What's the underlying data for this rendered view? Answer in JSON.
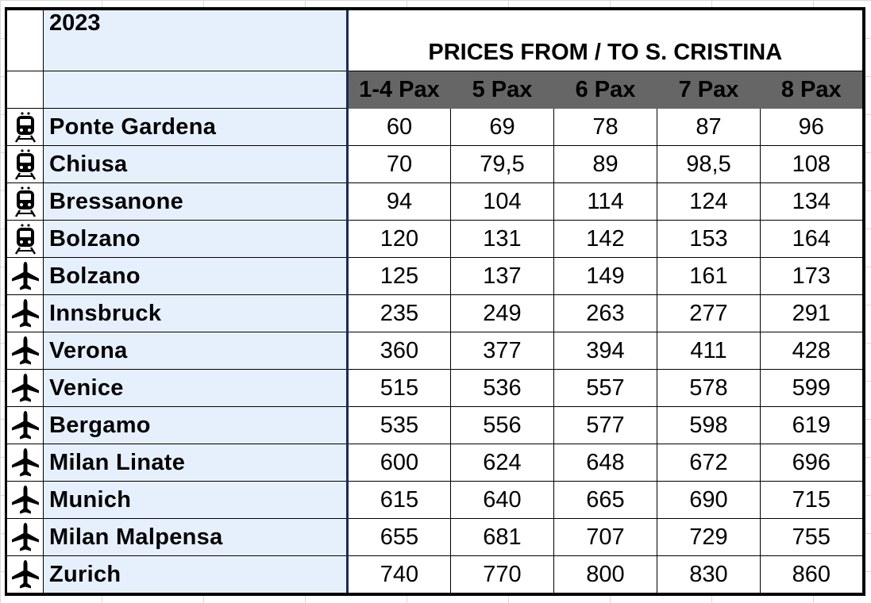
{
  "year": "2023",
  "title": "PRICES FROM / TO S. CRISTINA",
  "columns": [
    "1-4 Pax",
    "5 Pax",
    "6 Pax",
    "7 Pax",
    "8 Pax"
  ],
  "rows": [
    {
      "icon": "train-icon",
      "destination": "Ponte Gardena",
      "prices": [
        "60",
        "69",
        "78",
        "87",
        "96"
      ]
    },
    {
      "icon": "train-icon",
      "destination": "Chiusa",
      "prices": [
        "70",
        "79,5",
        "89",
        "98,5",
        "108"
      ]
    },
    {
      "icon": "train-icon",
      "destination": "Bressanone",
      "prices": [
        "94",
        "104",
        "114",
        "124",
        "134"
      ]
    },
    {
      "icon": "train-icon",
      "destination": "Bolzano",
      "prices": [
        "120",
        "131",
        "142",
        "153",
        "164"
      ]
    },
    {
      "icon": "airplane-icon",
      "destination": "Bolzano",
      "prices": [
        "125",
        "137",
        "149",
        "161",
        "173"
      ]
    },
    {
      "icon": "airplane-icon",
      "destination": "Innsbruck",
      "prices": [
        "235",
        "249",
        "263",
        "277",
        "291"
      ]
    },
    {
      "icon": "airplane-icon",
      "destination": "Verona",
      "prices": [
        "360",
        "377",
        "394",
        "411",
        "428"
      ]
    },
    {
      "icon": "airplane-icon",
      "destination": "Venice",
      "prices": [
        "515",
        "536",
        "557",
        "578",
        "599"
      ]
    },
    {
      "icon": "airplane-icon",
      "destination": "Bergamo",
      "prices": [
        "535",
        "556",
        "577",
        "598",
        "619"
      ]
    },
    {
      "icon": "airplane-icon",
      "destination": "Milan Linate",
      "prices": [
        "600",
        "624",
        "648",
        "672",
        "696"
      ]
    },
    {
      "icon": "airplane-icon",
      "destination": "Munich",
      "prices": [
        "615",
        "640",
        "665",
        "690",
        "715"
      ]
    },
    {
      "icon": "airplane-icon",
      "destination": "Milan Malpensa",
      "prices": [
        "655",
        "681",
        "707",
        "729",
        "755"
      ]
    },
    {
      "icon": "airplane-icon",
      "destination": "Zurich",
      "prices": [
        "740",
        "770",
        "800",
        "830",
        "860"
      ]
    }
  ],
  "colors": {
    "name_column_bg": "#e6f0fc",
    "header_bg": "#666666",
    "header_text": "#ffffff",
    "text": "#000000"
  }
}
